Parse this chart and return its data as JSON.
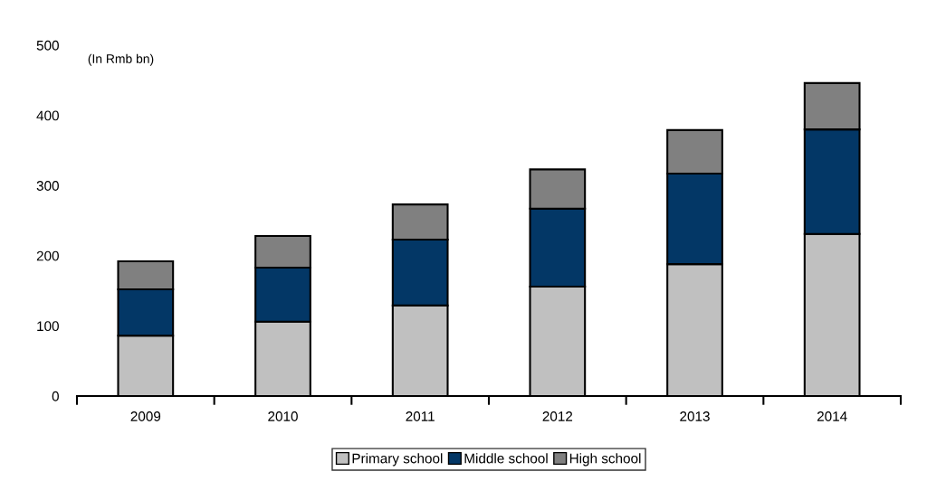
{
  "chart_data": {
    "type": "bar",
    "stacked": true,
    "categories": [
      "2009",
      "2010",
      "2011",
      "2012",
      "2013",
      "2014"
    ],
    "series": [
      {
        "name": "Primary school",
        "color": "#c0c0c0",
        "values": [
          86,
          106,
          129,
          156,
          188,
          231
        ]
      },
      {
        "name": "Middle school",
        "color": "#033766",
        "values": [
          66,
          77,
          94,
          111,
          129,
          149
        ]
      },
      {
        "name": "High school",
        "color": "#808080",
        "values": [
          40,
          45,
          50,
          56,
          62,
          66
        ]
      }
    ],
    "ylim": [
      0,
      500
    ],
    "yticks": [
      0,
      100,
      200,
      300,
      400,
      500
    ],
    "annotations": [
      "(In Rmb bn)"
    ],
    "grid": false,
    "legend": "bottom"
  }
}
